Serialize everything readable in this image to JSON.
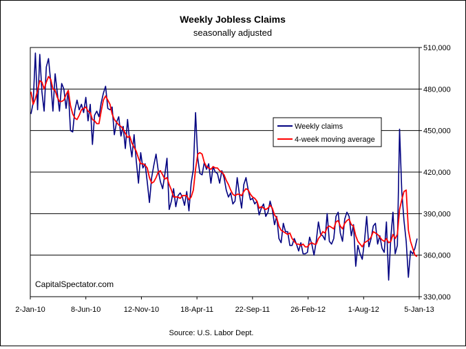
{
  "chart_data": {
    "type": "line",
    "title": "Weekly Jobless Claims",
    "subtitle": "seasonally adjusted",
    "source": "Source: U.S. Labor Dept.",
    "watermark": "CapitalSpectator.com",
    "x_range": [
      "2-Jan-10",
      "5-Jan-13"
    ],
    "x_tick_labels": [
      "2-Jan-10",
      "8-Jun-10",
      "12-Nov-10",
      "18-Apr-11",
      "22-Sep-11",
      "26-Feb-12",
      "1-Aug-12",
      "5-Jan-13"
    ],
    "y_tick_labels": [
      "510,000",
      "480,000",
      "450,000",
      "420,000",
      "390,000",
      "360,000",
      "330,000"
    ],
    "ylim": [
      330000,
      510000
    ],
    "y_axis_side": "right",
    "grid": "horizontal",
    "legend_position": "right of center",
    "series": [
      {
        "name": "Weekly claims",
        "color": "#000080",
        "values": [
          462000,
          470000,
          506000,
          465000,
          505000,
          478000,
          464000,
          496000,
          502000,
          485000,
          464000,
          491000,
          477000,
          464000,
          484000,
          480000,
          466000,
          479000,
          450000,
          449000,
          465000,
          472000,
          465000,
          469000,
          463000,
          474000,
          457000,
          469000,
          440000,
          461000,
          464000,
          460000,
          470000,
          477000,
          482000,
          466000,
          465000,
          467000,
          447000,
          456000,
          460000,
          446000,
          453000,
          437000,
          458000,
          442000,
          431000,
          447000,
          428000,
          412000,
          434000,
          423000,
          426000,
          413000,
          398000,
          416000,
          425000,
          433000,
          421000,
          413000,
          408000,
          418000,
          430000,
          393000,
          399000,
          408000,
          395000,
          403000,
          405000,
          402000,
          396000,
          406000,
          392000,
          412000,
          422000,
          463000,
          430000,
          419000,
          418000,
          427000,
          422000,
          426000,
          412000,
          424000,
          420000,
          419000,
          412000,
          421000,
          416000,
          407000,
          402000,
          405000,
          397000,
          399000,
          416000,
          404000,
          394000,
          411000,
          416000,
          407000,
          400000,
          401000,
          397000,
          399000,
          389000,
          394000,
          397000,
          388000,
          391000,
          399000,
          393000,
          382000,
          388000,
          372000,
          369000,
          383000,
          377000,
          377000,
          367000,
          367000,
          372000,
          368000,
          363000,
          369000,
          361000,
          361000,
          362000,
          373000,
          368000,
          360000,
          370000,
          384000,
          375000,
          374000,
          371000,
          390000,
          370000,
          368000,
          372000,
          388000,
          391000,
          376000,
          370000,
          386000,
          391000,
          388000,
          374000,
          382000,
          352000,
          367000,
          361000,
          357000,
          370000,
          388000,
          366000,
          372000,
          381000,
          383000,
          368000,
          374000,
          365000,
          362000,
          384000,
          342000,
          373000,
          391000,
          361000,
          367000,
          451000,
          406000,
          385000,
          370000,
          344000,
          363000,
          361000,
          365000,
          372000
        ]
      },
      {
        "name": "4-week moving average",
        "color": "#ff0000",
        "values": [
          478000,
          469000,
          473000,
          479000,
          486000,
          485000,
          480000,
          485000,
          489000,
          487000,
          480000,
          479000,
          474000,
          471000,
          471000,
          472000,
          476000,
          479000,
          468000,
          462000,
          459000,
          458000,
          461000,
          465000,
          466000,
          467000,
          464000,
          463000,
          458000,
          457000,
          455000,
          455000,
          464000,
          472000,
          475000,
          472000,
          469000,
          462000,
          458000,
          456000,
          454000,
          453000,
          451000,
          448000,
          445000,
          446000,
          441000,
          438000,
          435000,
          430000,
          426000,
          426000,
          425000,
          423000,
          416000,
          412000,
          413000,
          416000,
          420000,
          421000,
          418000,
          415000,
          416000,
          411000,
          407000,
          402000,
          402000,
          402000,
          401000,
          403000,
          403000,
          403000,
          400000,
          402000,
          407000,
          422000,
          433000,
          434000,
          433000,
          427000,
          424000,
          423000,
          422000,
          424000,
          423000,
          423000,
          421000,
          420000,
          418000,
          414000,
          411000,
          407000,
          404000,
          403000,
          404000,
          404000,
          403000,
          406000,
          408000,
          407000,
          404000,
          402000,
          401000,
          399000,
          394000,
          395000,
          394000,
          393000,
          394000,
          396000,
          394000,
          389000,
          387000,
          381000,
          378000,
          377000,
          376000,
          375000,
          376000,
          372000,
          370000,
          368000,
          368000,
          367000,
          368000,
          366000,
          366000,
          368000,
          369000,
          368000,
          368000,
          372000,
          374000,
          377000,
          376000,
          380000,
          381000,
          380000,
          379000,
          384000,
          385000,
          381000,
          379000,
          383000,
          385000,
          386000,
          382000,
          381000,
          374000,
          370000,
          368000,
          366000,
          369000,
          370000,
          371000,
          373000,
          377000,
          376000,
          375000,
          373000,
          371000,
          370000,
          372000,
          369000,
          370000,
          375000,
          372000,
          375000,
          393000,
          400000,
          406000,
          407000,
          378000,
          370000,
          365000,
          360000,
          359000
        ]
      }
    ]
  }
}
